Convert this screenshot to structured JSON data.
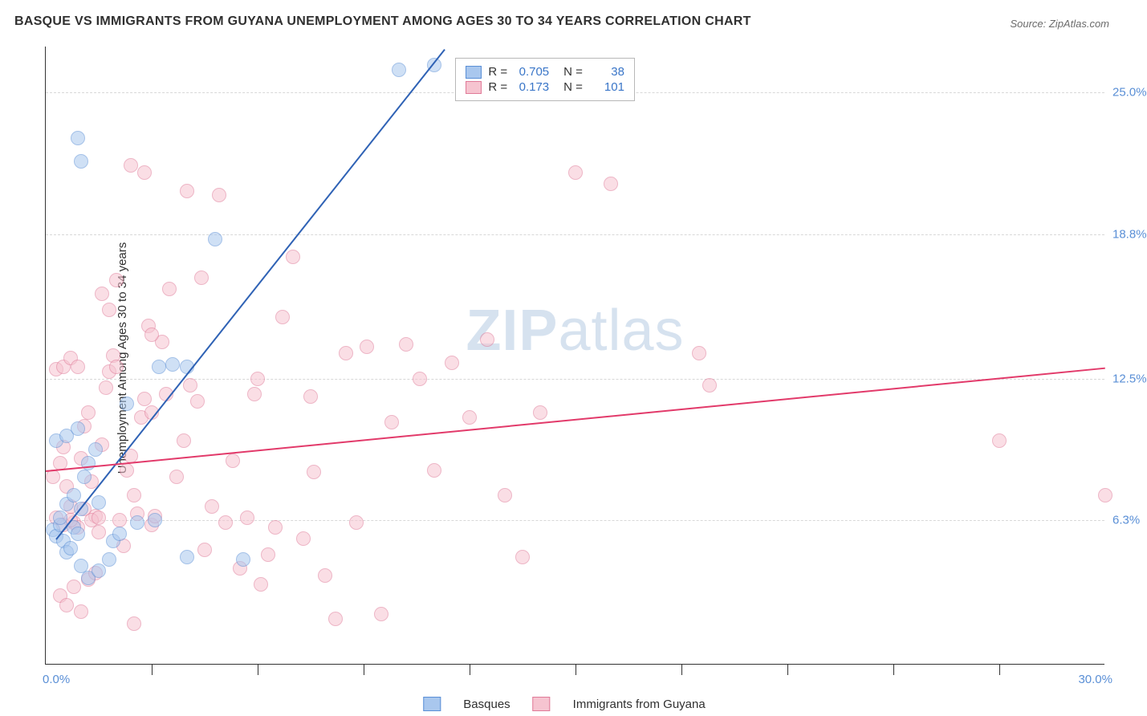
{
  "title": "BASQUE VS IMMIGRANTS FROM GUYANA UNEMPLOYMENT AMONG AGES 30 TO 34 YEARS CORRELATION CHART",
  "source": "Source: ZipAtlas.com",
  "ylabel": "Unemployment Among Ages 30 to 34 years",
  "watermark_bold": "ZIP",
  "watermark_rest": "atlas",
  "chart": {
    "type": "scatter",
    "xlim": [
      0,
      30
    ],
    "ylim": [
      0,
      27
    ],
    "xtick_minor": [
      3,
      6,
      9,
      12,
      15,
      18,
      21,
      24,
      27
    ],
    "yticks": [
      {
        "v": 6.3,
        "label": "6.3%"
      },
      {
        "v": 12.5,
        "label": "12.5%"
      },
      {
        "v": 18.8,
        "label": "18.8%"
      },
      {
        "v": 25.0,
        "label": "25.0%"
      }
    ],
    "xlabels": {
      "min": "0.0%",
      "max": "30.0%"
    },
    "grid_color": "#d8d8d8",
    "background_color": "#ffffff",
    "axis_color": "#333333",
    "tick_label_color": "#5a8fd6",
    "marker_radius": 9,
    "marker_opacity": 0.55,
    "series": [
      {
        "name": "Basques",
        "fill": "#a9c7ee",
        "stroke": "#5a8fd6",
        "line_color": "#2f62b5",
        "r": 0.705,
        "n": 38,
        "trend": {
          "x1": 0.3,
          "y1": 5.5,
          "x2": 11.3,
          "y2": 26.9
        },
        "points": [
          [
            0.2,
            5.9
          ],
          [
            0.3,
            5.6
          ],
          [
            0.4,
            6.1
          ],
          [
            0.5,
            5.4
          ],
          [
            0.6,
            4.9
          ],
          [
            0.7,
            5.1
          ],
          [
            0.8,
            6.0
          ],
          [
            0.9,
            5.7
          ],
          [
            0.4,
            6.4
          ],
          [
            0.6,
            7.0
          ],
          [
            0.8,
            7.4
          ],
          [
            1.0,
            6.8
          ],
          [
            1.1,
            8.2
          ],
          [
            1.2,
            8.8
          ],
          [
            1.4,
            9.4
          ],
          [
            1.5,
            7.1
          ],
          [
            0.3,
            9.8
          ],
          [
            0.6,
            10.0
          ],
          [
            0.9,
            10.3
          ],
          [
            1.0,
            4.3
          ],
          [
            1.2,
            3.8
          ],
          [
            1.5,
            4.1
          ],
          [
            1.8,
            4.6
          ],
          [
            1.9,
            5.4
          ],
          [
            2.1,
            5.7
          ],
          [
            2.3,
            11.4
          ],
          [
            2.6,
            6.2
          ],
          [
            3.1,
            6.3
          ],
          [
            3.6,
            13.1
          ],
          [
            4.0,
            13.0
          ],
          [
            4.8,
            18.6
          ],
          [
            5.6,
            4.6
          ],
          [
            0.9,
            23.0
          ],
          [
            1.0,
            22.0
          ],
          [
            10.0,
            26.0
          ],
          [
            11.0,
            26.2
          ],
          [
            4.0,
            4.7
          ],
          [
            3.2,
            13.0
          ]
        ]
      },
      {
        "name": "Immigrants from Guyana",
        "fill": "#f6c4d0",
        "stroke": "#e07a98",
        "line_color": "#e23a6a",
        "r": 0.173,
        "n": 101,
        "trend": {
          "x1": 0.0,
          "y1": 8.5,
          "x2": 30.0,
          "y2": 13.0
        },
        "points": [
          [
            0.2,
            8.2
          ],
          [
            0.4,
            8.8
          ],
          [
            0.5,
            9.5
          ],
          [
            0.6,
            7.8
          ],
          [
            0.7,
            6.9
          ],
          [
            0.8,
            6.2
          ],
          [
            0.9,
            6.0
          ],
          [
            1.0,
            9.0
          ],
          [
            1.1,
            10.4
          ],
          [
            1.2,
            11.0
          ],
          [
            1.3,
            8.0
          ],
          [
            1.4,
            6.5
          ],
          [
            1.5,
            5.8
          ],
          [
            1.6,
            9.6
          ],
          [
            1.7,
            12.1
          ],
          [
            1.8,
            12.8
          ],
          [
            1.9,
            13.5
          ],
          [
            2.0,
            13.0
          ],
          [
            2.1,
            6.3
          ],
          [
            2.2,
            5.2
          ],
          [
            2.3,
            8.5
          ],
          [
            2.4,
            9.1
          ],
          [
            2.5,
            7.4
          ],
          [
            2.6,
            6.6
          ],
          [
            2.7,
            10.8
          ],
          [
            2.8,
            11.6
          ],
          [
            2.9,
            14.8
          ],
          [
            3.0,
            6.1
          ],
          [
            3.1,
            6.5
          ],
          [
            3.3,
            14.1
          ],
          [
            3.5,
            16.4
          ],
          [
            3.7,
            8.2
          ],
          [
            3.9,
            9.8
          ],
          [
            4.1,
            12.2
          ],
          [
            4.3,
            11.5
          ],
          [
            4.5,
            5.0
          ],
          [
            4.7,
            6.9
          ],
          [
            4.9,
            20.5
          ],
          [
            5.1,
            6.2
          ],
          [
            5.3,
            8.9
          ],
          [
            5.5,
            4.2
          ],
          [
            5.7,
            6.4
          ],
          [
            5.9,
            11.8
          ],
          [
            6.1,
            3.5
          ],
          [
            6.3,
            4.8
          ],
          [
            6.5,
            6.0
          ],
          [
            6.7,
            15.2
          ],
          [
            7.0,
            17.8
          ],
          [
            7.3,
            5.5
          ],
          [
            7.6,
            8.4
          ],
          [
            7.9,
            3.9
          ],
          [
            8.2,
            2.0
          ],
          [
            8.5,
            13.6
          ],
          [
            8.8,
            6.2
          ],
          [
            9.1,
            13.9
          ],
          [
            9.5,
            2.2
          ],
          [
            9.8,
            10.6
          ],
          [
            10.2,
            14.0
          ],
          [
            10.6,
            12.5
          ],
          [
            11.0,
            8.5
          ],
          [
            11.5,
            13.2
          ],
          [
            12.0,
            10.8
          ],
          [
            12.5,
            14.2
          ],
          [
            13.0,
            7.4
          ],
          [
            13.5,
            4.7
          ],
          [
            14.0,
            11.0
          ],
          [
            15.0,
            21.5
          ],
          [
            16.0,
            21.0
          ],
          [
            18.5,
            13.6
          ],
          [
            18.8,
            12.2
          ],
          [
            27.0,
            9.8
          ],
          [
            30.0,
            7.4
          ],
          [
            0.3,
            12.9
          ],
          [
            0.4,
            3.0
          ],
          [
            0.6,
            2.6
          ],
          [
            0.8,
            3.4
          ],
          [
            1.0,
            2.3
          ],
          [
            1.2,
            3.7
          ],
          [
            1.4,
            4.0
          ],
          [
            1.6,
            16.2
          ],
          [
            1.8,
            15.5
          ],
          [
            2.0,
            16.8
          ],
          [
            2.4,
            21.8
          ],
          [
            2.8,
            21.5
          ],
          [
            0.5,
            13.0
          ],
          [
            0.7,
            13.4
          ],
          [
            0.9,
            13.0
          ],
          [
            1.1,
            6.8
          ],
          [
            1.3,
            6.3
          ],
          [
            1.5,
            6.4
          ],
          [
            2.5,
            1.8
          ],
          [
            3.0,
            11.0
          ],
          [
            3.4,
            11.8
          ],
          [
            4.0,
            20.7
          ],
          [
            4.4,
            16.9
          ],
          [
            0.3,
            6.4
          ],
          [
            0.5,
            6.1
          ],
          [
            0.7,
            6.3
          ],
          [
            6.0,
            12.5
          ],
          [
            7.5,
            11.7
          ],
          [
            3.0,
            14.4
          ]
        ]
      }
    ]
  },
  "legend": {
    "s1": "Basques",
    "s2": "Immigrants from Guyana"
  },
  "statbox": {
    "r_label": "R =",
    "n_label": "N ="
  }
}
